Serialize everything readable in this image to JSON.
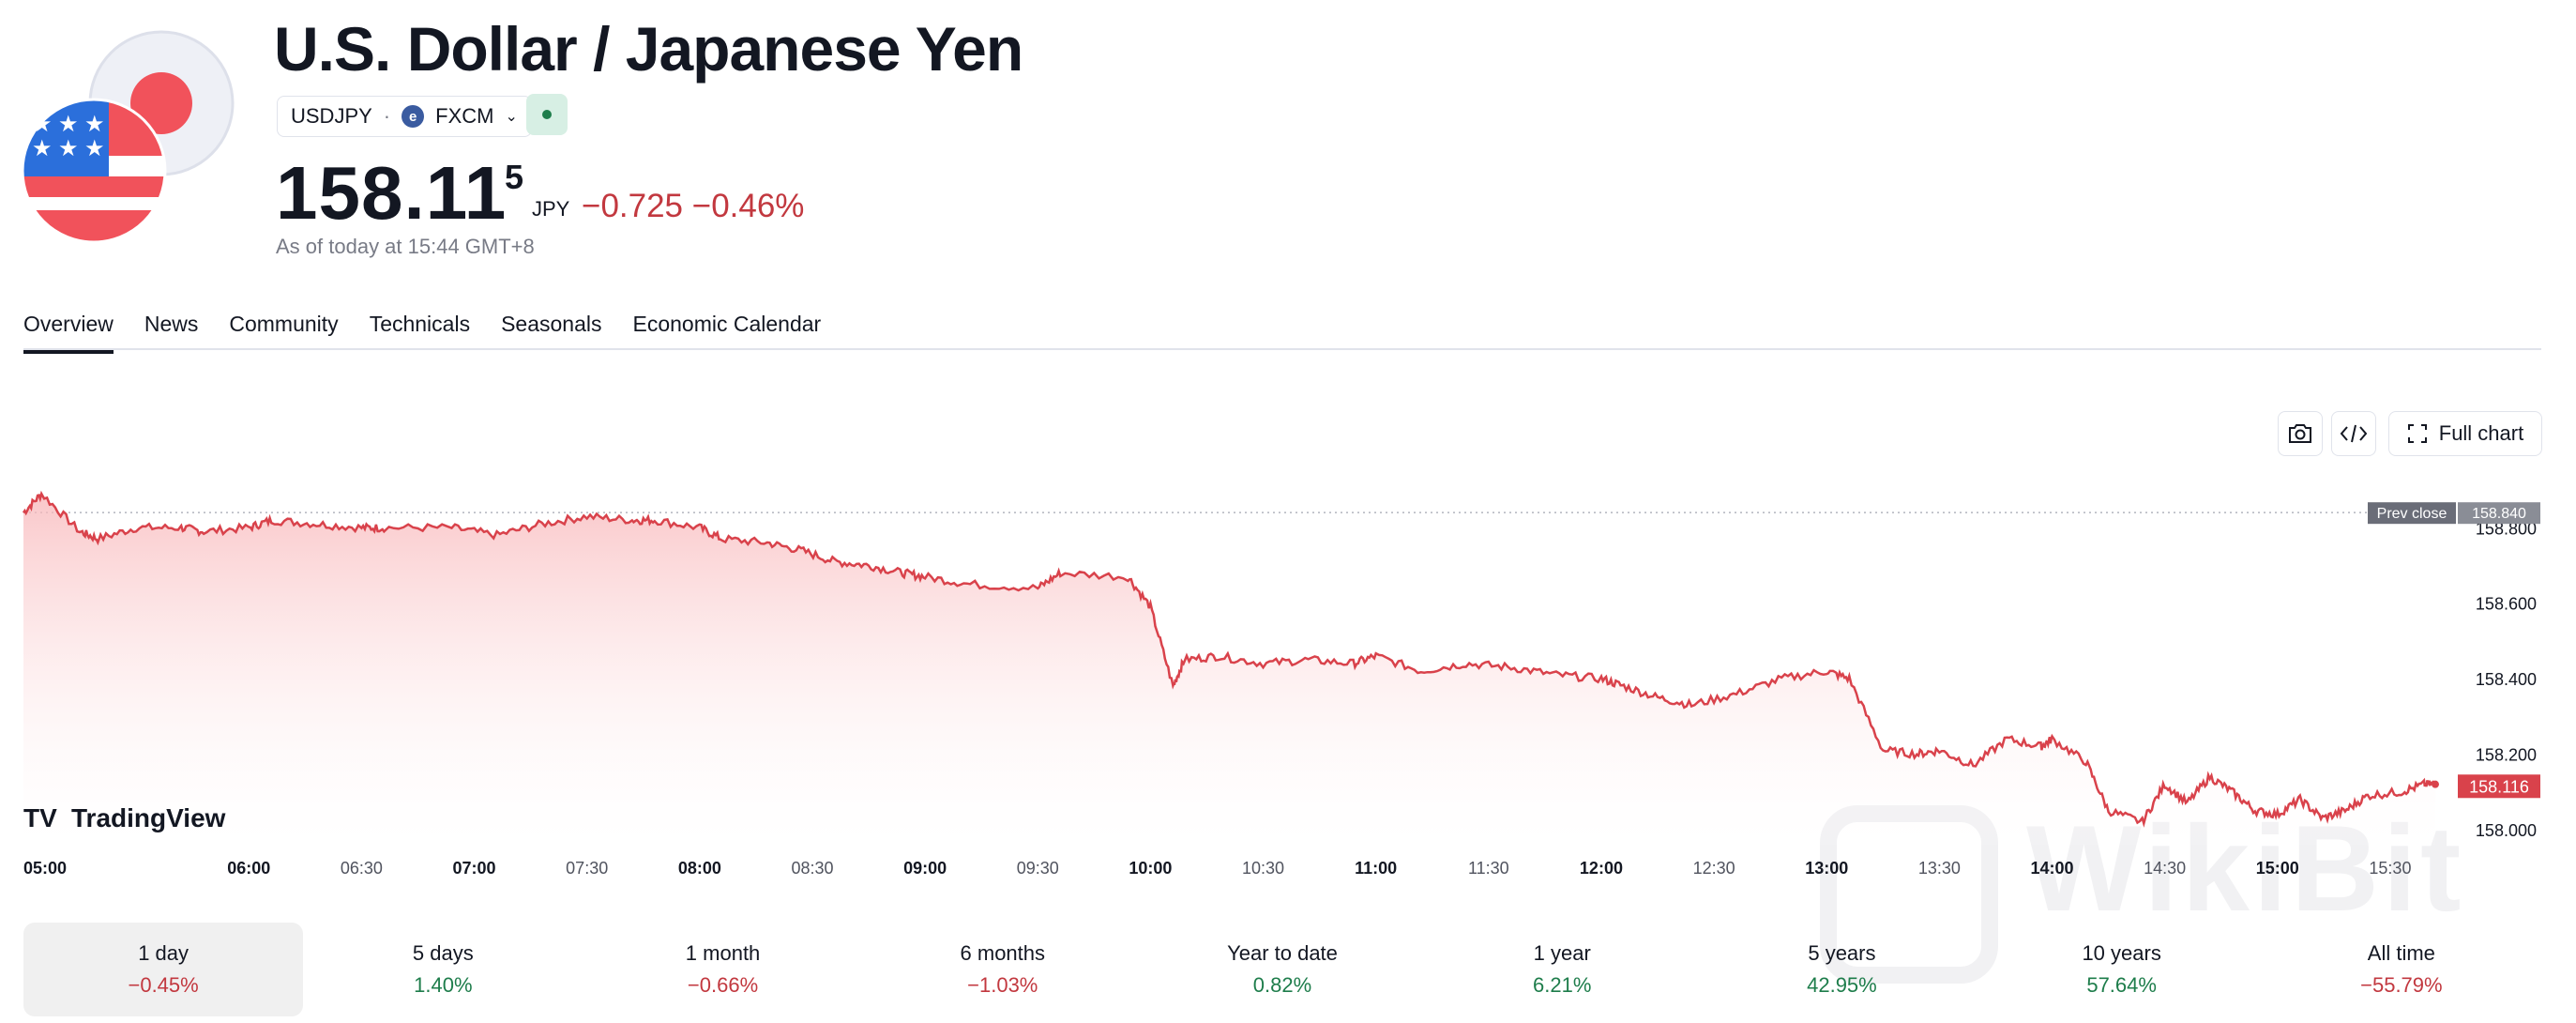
{
  "header": {
    "title": "U.S. Dollar / Japanese Yen",
    "symbol": "USDJPY",
    "separator": "·",
    "exchange": "FXCM",
    "price_main": "158.11",
    "price_frac": "5",
    "currency": "JPY",
    "change": "−0.725 −0.46%",
    "as_of": "As of today at 15:44 GMT+8"
  },
  "tabs": [
    {
      "label": "Overview",
      "active": true
    },
    {
      "label": "News"
    },
    {
      "label": "Community"
    },
    {
      "label": "Technicals"
    },
    {
      "label": "Seasonals"
    },
    {
      "label": "Economic Calendar"
    }
  ],
  "toolbar": {
    "screenshot_icon": "camera-icon",
    "embed_icon": "code-icon",
    "full_chart_icon": "expand-icon",
    "full_chart_label": "Full chart"
  },
  "chart_data": {
    "type": "area",
    "x_ticks": [
      "05:00",
      "06:00",
      "06:30",
      "07:00",
      "07:30",
      "08:00",
      "08:30",
      "09:00",
      "09:30",
      "10:00",
      "10:30",
      "11:00",
      "11:30",
      "12:00",
      "12:30",
      "13:00",
      "13:30",
      "14:00",
      "14:30",
      "15:00",
      "15:30"
    ],
    "bold_ticks": [
      "05:00",
      "06:00",
      "07:00",
      "08:00",
      "09:00",
      "10:00",
      "11:00",
      "12:00",
      "13:00",
      "14:00",
      "15:00"
    ],
    "y_ticks": [
      "158.800",
      "158.600",
      "158.400",
      "158.200",
      "158.000"
    ],
    "ylim": [
      157.96,
      158.93
    ],
    "prev_close_label": "Prev close",
    "prev_close_value": "158.840",
    "last_value": "158.116",
    "line_color": "#d9424b",
    "series": [
      {
        "x": [
          5.0,
          5.08,
          5.25,
          5.33,
          5.5,
          5.7,
          5.8,
          6.0,
          6.1,
          6.3,
          6.5,
          6.6,
          6.9,
          7.1,
          7.3,
          7.5,
          7.7,
          7.8,
          8.0,
          8.1,
          8.3,
          8.45,
          8.6,
          8.75,
          8.9,
          9.0,
          9.2,
          9.5,
          9.6,
          9.9,
          10.0,
          10.1,
          10.15,
          10.3,
          10.5,
          10.7,
          10.9,
          11.0,
          11.2,
          11.4,
          11.6,
          11.8,
          12.0,
          12.1,
          12.25,
          12.4,
          12.6,
          12.8,
          13.0,
          13.1,
          13.25,
          13.4,
          13.5,
          13.65,
          13.8,
          13.95,
          14.0,
          14.15,
          14.25,
          14.4,
          14.5,
          14.6,
          14.7,
          14.8,
          14.9,
          15.0,
          15.1,
          15.2,
          15.3,
          15.4,
          15.55,
          15.65,
          15.7
        ],
        "y": [
          158.84,
          158.89,
          158.79,
          158.77,
          158.8,
          158.8,
          158.79,
          158.8,
          158.82,
          158.81,
          158.8,
          158.8,
          158.8,
          158.78,
          158.81,
          158.83,
          158.82,
          158.82,
          158.8,
          158.77,
          158.76,
          158.74,
          158.71,
          158.7,
          158.68,
          158.67,
          158.65,
          158.64,
          158.68,
          158.67,
          158.59,
          158.38,
          158.45,
          158.46,
          158.44,
          158.45,
          158.44,
          158.46,
          158.42,
          158.44,
          158.43,
          158.41,
          158.4,
          158.38,
          158.35,
          158.33,
          158.36,
          158.4,
          158.42,
          158.4,
          158.21,
          158.2,
          158.21,
          158.17,
          158.24,
          158.22,
          158.24,
          158.18,
          158.05,
          158.02,
          158.12,
          158.07,
          158.14,
          158.1,
          158.05,
          158.04,
          158.08,
          158.03,
          158.05,
          158.09,
          158.1,
          158.12,
          158.12
        ]
      }
    ]
  },
  "watermark": "WikiBit",
  "branding": "TradingView",
  "periods": [
    {
      "label": "1 day",
      "value": "−0.45%",
      "sign": "neg",
      "active": true
    },
    {
      "label": "5 days",
      "value": "1.40%",
      "sign": "pos"
    },
    {
      "label": "1 month",
      "value": "−0.66%",
      "sign": "neg"
    },
    {
      "label": "6 months",
      "value": "−1.03%",
      "sign": "neg"
    },
    {
      "label": "Year to date",
      "value": "0.82%",
      "sign": "pos"
    },
    {
      "label": "1 year",
      "value": "6.21%",
      "sign": "pos"
    },
    {
      "label": "5 years",
      "value": "42.95%",
      "sign": "pos"
    },
    {
      "label": "10 years",
      "value": "57.64%",
      "sign": "pos"
    },
    {
      "label": "All time",
      "value": "−55.79%",
      "sign": "neg"
    }
  ]
}
